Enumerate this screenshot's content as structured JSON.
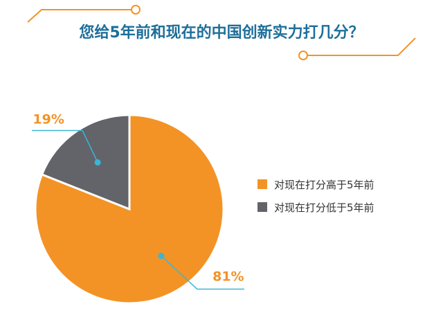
{
  "colors": {
    "accent": "#f39325",
    "gray": "#626469",
    "title": "#1d6f9a",
    "leader": "#3bb4d8",
    "decor": "#f39325"
  },
  "chart_data": {
    "type": "pie",
    "title": "您给5年前和现在的中国创新实力打几分？",
    "slices": [
      {
        "label": "对现在打分高于5年前",
        "value": 81,
        "value_label": "81%",
        "color": "#f39325"
      },
      {
        "label": "对现在打分低于5年前",
        "value": 19,
        "value_label": "19%",
        "color": "#626469"
      }
    ],
    "legend_position": "right"
  }
}
